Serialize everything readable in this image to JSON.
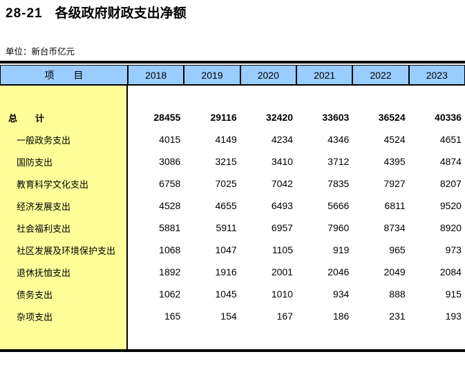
{
  "title": {
    "number": "28-21",
    "text": "各级政府财政支出净额"
  },
  "unit_label": "单位：新台币亿元",
  "colors": {
    "header_bg": "#99CCFF",
    "item_col_bg": "#FFFF99",
    "rule": "#000000"
  },
  "table": {
    "item_header": "项　　目",
    "year_headers": [
      "2018",
      "2019",
      "2020",
      "2021",
      "2022",
      "2023"
    ],
    "rows": [
      {
        "label": "总　　计",
        "bold": true,
        "values": [
          28455,
          29116,
          32420,
          33603,
          36524,
          40336
        ]
      },
      {
        "label": "一般政务支出",
        "values": [
          4015,
          4149,
          4234,
          4346,
          4524,
          4651
        ]
      },
      {
        "label": "国防支出",
        "values": [
          3086,
          3215,
          3410,
          3712,
          4395,
          4874
        ]
      },
      {
        "label": "教育科学文化支出",
        "values": [
          6758,
          7025,
          7042,
          7835,
          7927,
          8207
        ]
      },
      {
        "label": "经济发展支出",
        "values": [
          4528,
          4655,
          6493,
          5666,
          6811,
          9520
        ]
      },
      {
        "label": "社会福利支出",
        "values": [
          5881,
          5911,
          6957,
          7960,
          8734,
          8920
        ]
      },
      {
        "label": "社区发展及环境保护支出",
        "values": [
          1068,
          1047,
          1105,
          919,
          965,
          973
        ]
      },
      {
        "label": "退休抚恤支出",
        "values": [
          1892,
          1916,
          2001,
          2046,
          2049,
          2084
        ]
      },
      {
        "label": "债务支出",
        "values": [
          1062,
          1045,
          1010,
          934,
          888,
          915
        ]
      },
      {
        "label": "杂项支出",
        "values": [
          165,
          154,
          167,
          186,
          231,
          193
        ]
      }
    ]
  }
}
